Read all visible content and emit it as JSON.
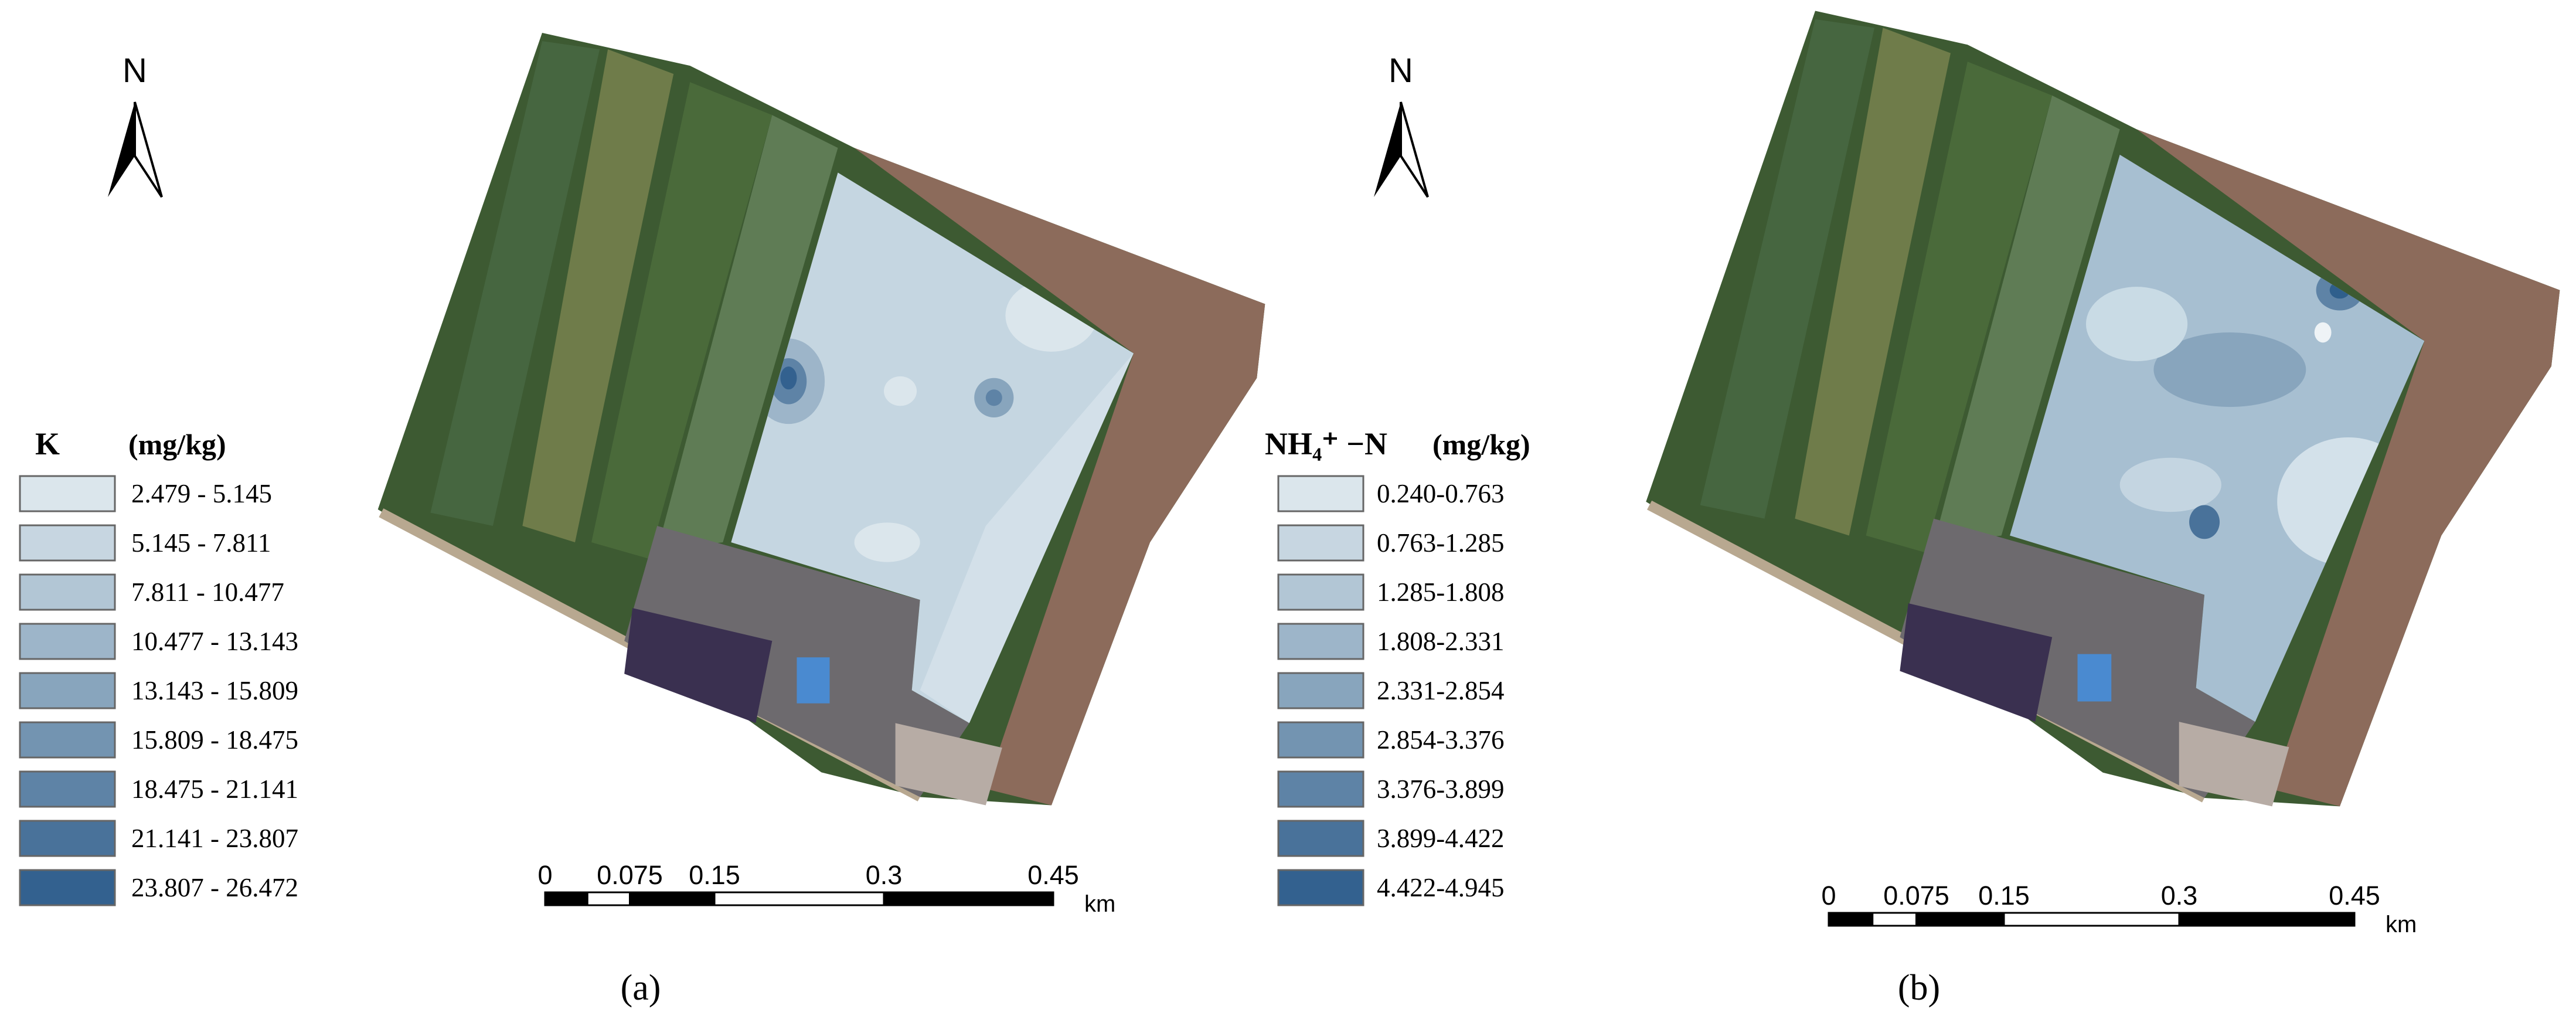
{
  "panels": [
    {
      "caption": "(a)",
      "north": "N",
      "legend": {
        "title": "K",
        "unit": "(mg/kg)",
        "classes": [
          "2.479 - 5.145",
          "5.145 - 7.811",
          "7.811 - 10.477",
          "10.477 - 13.143",
          "13.143 - 15.809",
          "15.809 - 18.475",
          "18.475 - 21.141",
          "21.141 - 23.807",
          "23.807 - 26.472"
        ],
        "colors": [
          "#dbe6ec",
          "#c7d6e1",
          "#b2c6d5",
          "#9db5c9",
          "#88a5bd",
          "#7394b1",
          "#5e83a6",
          "#49729a",
          "#33618f"
        ]
      },
      "scale_bar": {
        "ticks": [
          0,
          0.075,
          0.15,
          0.3,
          0.45
        ],
        "unit": "km"
      }
    },
    {
      "caption": "(b)",
      "north": "N",
      "legend": {
        "title": "NH₄⁺ −N",
        "unit": "(mg/kg)",
        "classes": [
          "0.240-0.763",
          "0.763-1.285",
          "1.285-1.808",
          "1.808-2.331",
          "2.331-2.854",
          "2.854-3.376",
          "3.376-3.899",
          "3.899-4.422",
          "4.422-4.945"
        ],
        "colors": [
          "#dbe6ec",
          "#c7d6e1",
          "#b2c6d5",
          "#9db5c9",
          "#88a5bd",
          "#7394b1",
          "#5e83a6",
          "#49729a",
          "#33618f"
        ]
      },
      "scale_bar": {
        "ticks": [
          0,
          0.075,
          0.15,
          0.3,
          0.45
        ],
        "unit": "km"
      }
    }
  ]
}
